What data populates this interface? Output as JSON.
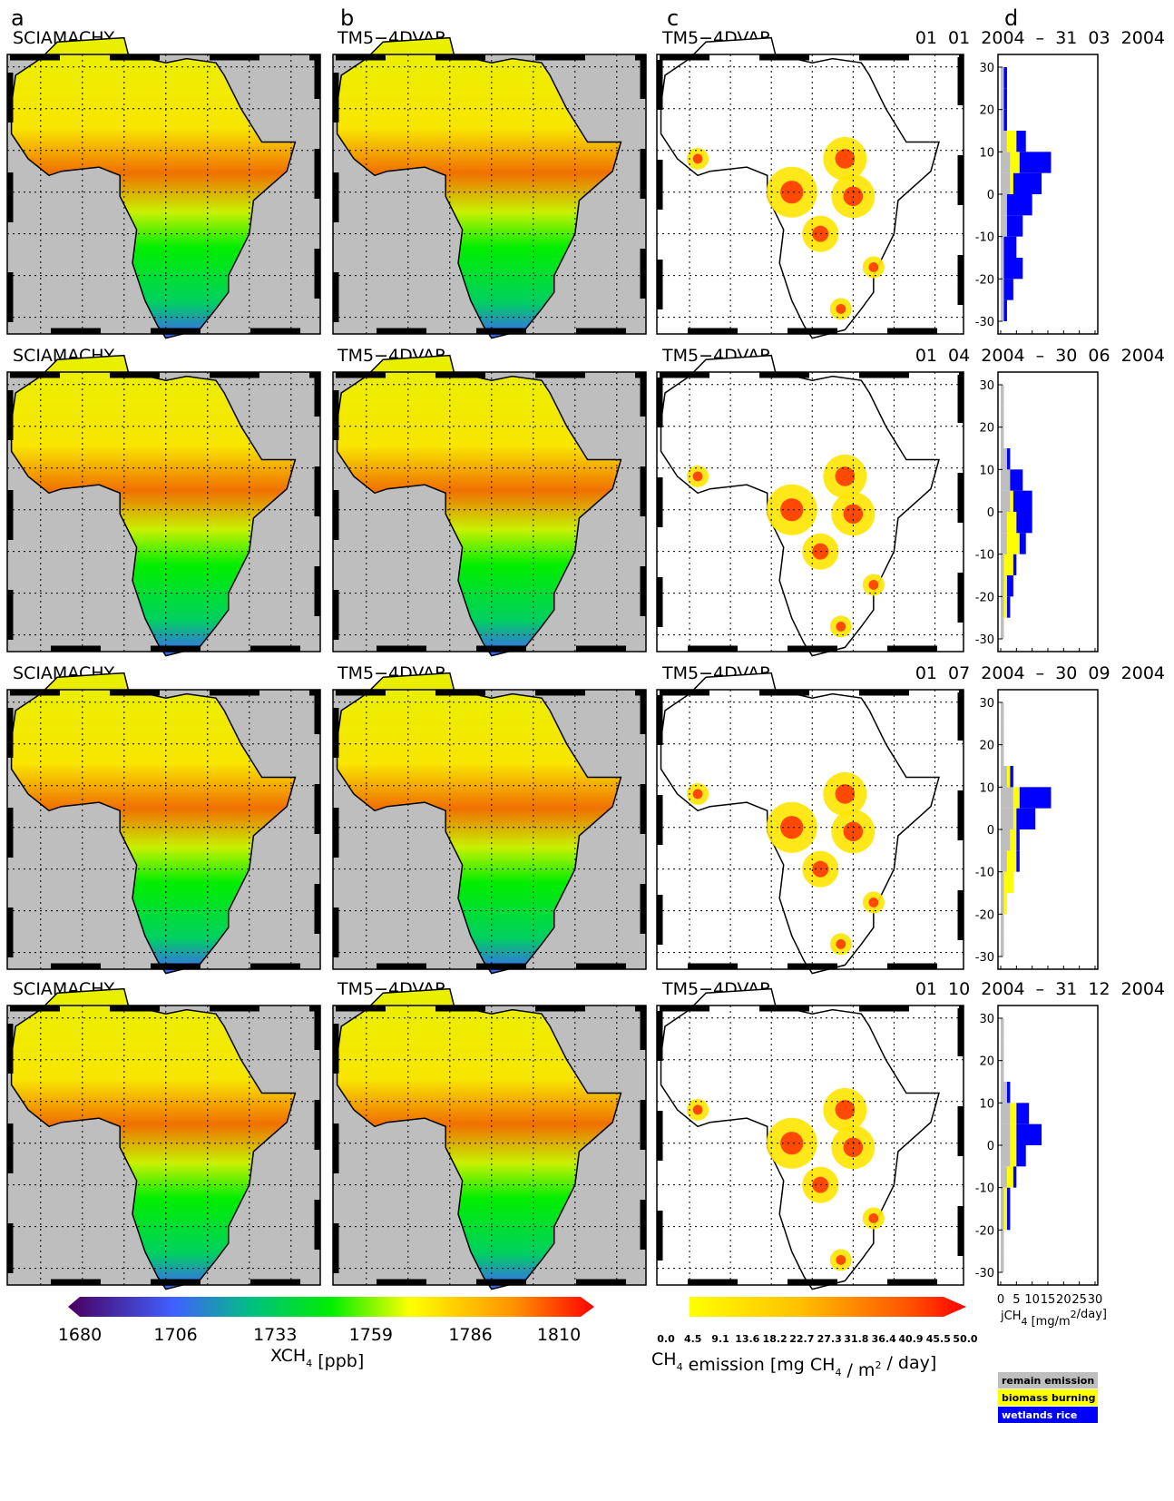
{
  "chart_data": {
    "type": "map-profile-panel",
    "column_letters": [
      "a",
      "b",
      "c",
      "d"
    ],
    "left_title": "SCIAMACHY",
    "middle_title": "TM5−4DVAR",
    "right_title": "TM5−4DVAR",
    "periods": [
      "01 01 2004 – 31 03 2004",
      "01 04 2004 – 30 06 2004",
      "01 07 2004 – 30 09 2004",
      "01 10 2004 – 31 12 2004"
    ],
    "profile": {
      "ylim": [
        -33,
        33
      ],
      "yticks": [
        30,
        20,
        10,
        0,
        -10,
        -20,
        -30
      ],
      "xlim": [
        0,
        30
      ],
      "xticks": [
        0,
        5,
        10,
        15,
        20,
        25,
        30
      ],
      "xlabel": [
        "jCH",
        "4",
        " [mg/m",
        "2",
        "/day]"
      ],
      "lat_bins": [
        -30,
        -25,
        -20,
        -15,
        -10,
        -5,
        0,
        5,
        10,
        15,
        20,
        25,
        30
      ],
      "series": [
        {
          "name": "remain emission",
          "color": "#bebebe",
          "values": [
            [
              1,
              1,
              1,
              1,
              2,
              2,
              3,
              3,
              2,
              1,
              1,
              1
            ],
            [
              1,
              1,
              1,
              1,
              2,
              2,
              3,
              3,
              2,
              1,
              1,
              1
            ],
            [
              1,
              1,
              1,
              1,
              2,
              3,
              4,
              4,
              2,
              1,
              1,
              1
            ],
            [
              1,
              1,
              1,
              1,
              2,
              3,
              3,
              3,
              2,
              1,
              1,
              1
            ]
          ]
        },
        {
          "name": "biomass burning",
          "color": "#ffff00",
          "values": [
            [
              0,
              0,
              0,
              0,
              0,
              0,
              1,
              3,
              3,
              0,
              0,
              0
            ],
            [
              0,
              1,
              1,
              3,
              4,
              3,
              1,
              0,
              0,
              0,
              0,
              0
            ],
            [
              0,
              0,
              1,
              3,
              3,
              2,
              1,
              2,
              1,
              0,
              0,
              0
            ],
            [
              0,
              0,
              1,
              1,
              2,
              2,
              2,
              2,
              0,
              0,
              0,
              0
            ]
          ]
        },
        {
          "name": "wetlands rice",
          "color": "#0000ff",
          "values": [
            [
              1,
              3,
              6,
              4,
              5,
              8,
              9,
              10,
              3,
              1,
              1,
              1
            ],
            [
              0,
              1,
              2,
              1,
              2,
              5,
              6,
              4,
              1,
              0,
              0,
              0
            ],
            [
              0,
              0,
              0,
              0,
              1,
              1,
              6,
              10,
              1,
              0,
              0,
              0
            ],
            [
              0,
              0,
              1,
              1,
              1,
              3,
              8,
              4,
              1,
              0,
              0,
              0
            ]
          ]
        }
      ]
    },
    "xch4_colorbar": {
      "xlim": [
        1680,
        1810
      ],
      "xticks": [
        1680,
        1706,
        1733,
        1759,
        1786,
        1810
      ],
      "label": [
        "XCH",
        "4",
        " [ppb]"
      ]
    },
    "emission_colorbar": {
      "xlim": [
        0,
        50
      ],
      "xticks": [
        {
          "value": 0,
          "label": "0.0"
        },
        4.5,
        9.1,
        13.6,
        18.2,
        22.7,
        27.3,
        31.8,
        36.4,
        40.9,
        45.5,
        {
          "value": 50,
          "label": "50.0"
        }
      ],
      "label": [
        "CH",
        "4",
        " emission [mg CH",
        "4",
        " / m",
        "2",
        " / day]"
      ]
    }
  }
}
